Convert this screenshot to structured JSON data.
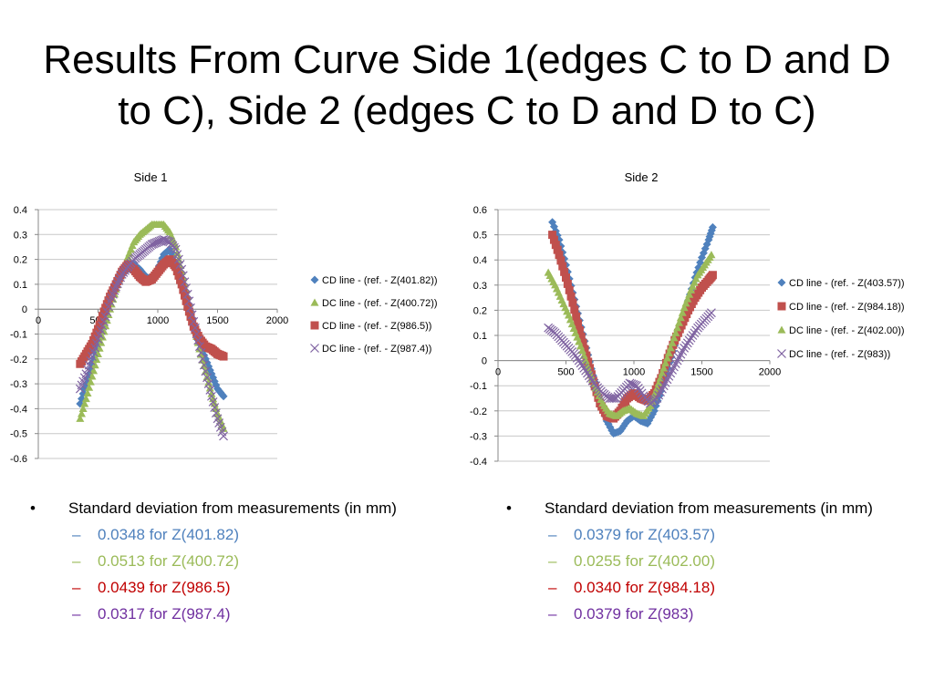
{
  "slide": {
    "title": "Results From Curve Side 1(edges C to D and D to C), Side 2 (edges C to D and D to C)"
  },
  "chart_data": [
    {
      "type": "scatter",
      "title": "Side 1",
      "xlim": [
        0,
        2000
      ],
      "ylim": [
        -0.6,
        0.4
      ],
      "xticks": [
        0,
        500,
        1000,
        1500,
        2000
      ],
      "yticks": [
        0.4,
        0.3,
        0.2,
        0.1,
        0,
        -0.1,
        -0.2,
        -0.3,
        -0.4,
        -0.5,
        -0.6
      ],
      "grid": true,
      "legend_position": "right",
      "series": [
        {
          "name": "CD line - (ref. - Z(401.82))",
          "marker": "diamond",
          "color": "#4F81BD",
          "x": [
            350,
            400,
            450,
            500,
            550,
            600,
            650,
            700,
            750,
            800,
            850,
            900,
            950,
            1000,
            1050,
            1100,
            1150,
            1200,
            1250,
            1300,
            1350,
            1400,
            1450,
            1500,
            1550
          ],
          "y": [
            -0.38,
            -0.3,
            -0.22,
            -0.13,
            -0.04,
            0.04,
            0.1,
            0.14,
            0.16,
            0.18,
            0.16,
            0.13,
            0.12,
            0.16,
            0.22,
            0.24,
            0.18,
            0.1,
            0.0,
            -0.08,
            -0.14,
            -0.2,
            -0.26,
            -0.32,
            -0.35
          ]
        },
        {
          "name": "DC line - (ref. - Z(400.72))",
          "marker": "triangle",
          "color": "#9BBB59",
          "x": [
            350,
            400,
            450,
            500,
            550,
            600,
            650,
            700,
            750,
            800,
            850,
            900,
            950,
            1000,
            1050,
            1100,
            1150,
            1200,
            1250,
            1300,
            1350,
            1400,
            1450,
            1500,
            1550
          ],
          "y": [
            -0.44,
            -0.36,
            -0.27,
            -0.18,
            -0.09,
            0.0,
            0.08,
            0.15,
            0.21,
            0.27,
            0.3,
            0.32,
            0.34,
            0.34,
            0.34,
            0.31,
            0.25,
            0.15,
            0.05,
            -0.06,
            -0.16,
            -0.25,
            -0.34,
            -0.42,
            -0.48
          ]
        },
        {
          "name": "CD line - (ref. - Z(986.5))",
          "marker": "square",
          "color": "#C0504D",
          "x": [
            350,
            400,
            450,
            500,
            550,
            600,
            650,
            700,
            750,
            800,
            850,
            900,
            950,
            1000,
            1050,
            1100,
            1150,
            1200,
            1250,
            1300,
            1350,
            1400,
            1450,
            1500,
            1550
          ],
          "y": [
            -0.22,
            -0.18,
            -0.14,
            -0.08,
            -0.01,
            0.05,
            0.1,
            0.15,
            0.18,
            0.16,
            0.13,
            0.11,
            0.12,
            0.15,
            0.18,
            0.2,
            0.17,
            0.1,
            0.01,
            -0.07,
            -0.12,
            -0.15,
            -0.16,
            -0.18,
            -0.19
          ]
        },
        {
          "name": "DC line - (ref. - Z(987.4))",
          "marker": "x",
          "color": "#8064A2",
          "x": [
            350,
            400,
            450,
            500,
            550,
            600,
            650,
            700,
            750,
            800,
            850,
            900,
            950,
            1000,
            1050,
            1100,
            1150,
            1200,
            1250,
            1300,
            1350,
            1400,
            1450,
            1500,
            1550
          ],
          "y": [
            -0.32,
            -0.26,
            -0.19,
            -0.12,
            -0.05,
            0.03,
            0.09,
            0.14,
            0.17,
            0.2,
            0.22,
            0.24,
            0.26,
            0.27,
            0.28,
            0.27,
            0.24,
            0.16,
            0.06,
            -0.05,
            -0.15,
            -0.25,
            -0.35,
            -0.44,
            -0.51
          ]
        }
      ]
    },
    {
      "type": "scatter",
      "title": "Side 2",
      "xlim": [
        0,
        2000
      ],
      "ylim": [
        -0.4,
        0.6
      ],
      "xticks": [
        0,
        500,
        1000,
        1500,
        2000
      ],
      "yticks": [
        0.6,
        0.5,
        0.4,
        0.3,
        0.2,
        0.1,
        0,
        -0.1,
        -0.2,
        -0.3,
        -0.4
      ],
      "grid": true,
      "legend_position": "right",
      "series": [
        {
          "name": "CD line - (ref. - Z(403.57))",
          "marker": "diamond",
          "color": "#4F81BD",
          "x": [
            400,
            450,
            500,
            550,
            600,
            650,
            700,
            750,
            800,
            850,
            900,
            950,
            1000,
            1050,
            1100,
            1150,
            1200,
            1250,
            1300,
            1350,
            1400,
            1450,
            1500,
            1550,
            1580
          ],
          "y": [
            0.55,
            0.48,
            0.38,
            0.27,
            0.16,
            0.05,
            -0.06,
            -0.16,
            -0.24,
            -0.29,
            -0.28,
            -0.24,
            -0.22,
            -0.24,
            -0.25,
            -0.2,
            -0.12,
            -0.03,
            0.06,
            0.15,
            0.24,
            0.33,
            0.41,
            0.48,
            0.53
          ]
        },
        {
          "name": "CD line - (ref. - Z(984.18))",
          "marker": "square",
          "color": "#C0504D",
          "x": [
            400,
            450,
            500,
            550,
            600,
            650,
            700,
            750,
            800,
            850,
            900,
            950,
            1000,
            1050,
            1100,
            1150,
            1200,
            1250,
            1300,
            1350,
            1400,
            1450,
            1500,
            1550,
            1580
          ],
          "y": [
            0.5,
            0.42,
            0.33,
            0.23,
            0.12,
            0.02,
            -0.08,
            -0.17,
            -0.22,
            -0.23,
            -0.2,
            -0.15,
            -0.13,
            -0.15,
            -0.16,
            -0.13,
            -0.07,
            0.01,
            0.08,
            0.14,
            0.2,
            0.25,
            0.29,
            0.32,
            0.34
          ]
        },
        {
          "name": "DC line - (ref. - Z(402.00))",
          "marker": "triangle",
          "color": "#9BBB59",
          "x": [
            370,
            420,
            470,
            520,
            570,
            620,
            670,
            720,
            770,
            820,
            870,
            920,
            970,
            1020,
            1070,
            1120,
            1170,
            1220,
            1270,
            1320,
            1370,
            1420,
            1470,
            1520,
            1570
          ],
          "y": [
            0.35,
            0.3,
            0.24,
            0.18,
            0.11,
            0.04,
            -0.04,
            -0.11,
            -0.17,
            -0.21,
            -0.22,
            -0.2,
            -0.19,
            -0.21,
            -0.22,
            -0.18,
            -0.11,
            -0.03,
            0.05,
            0.13,
            0.21,
            0.28,
            0.34,
            0.38,
            0.42
          ]
        },
        {
          "name": "DC line - (ref. - Z(983))",
          "marker": "x",
          "color": "#8064A2",
          "x": [
            370,
            420,
            470,
            520,
            570,
            620,
            670,
            720,
            770,
            820,
            870,
            920,
            970,
            1020,
            1070,
            1120,
            1170,
            1220,
            1270,
            1320,
            1370,
            1420,
            1470,
            1520,
            1570
          ],
          "y": [
            0.13,
            0.11,
            0.08,
            0.05,
            0.02,
            -0.02,
            -0.06,
            -0.1,
            -0.13,
            -0.15,
            -0.15,
            -0.12,
            -0.09,
            -0.1,
            -0.14,
            -0.17,
            -0.15,
            -0.1,
            -0.05,
            0.0,
            0.05,
            0.09,
            0.13,
            0.16,
            0.19
          ]
        }
      ]
    }
  ],
  "notes": {
    "left": {
      "heading": "Standard deviation from measurements (in mm)",
      "items": [
        {
          "text": "0.0348 for Z(401.82)",
          "color": "#4F81BD"
        },
        {
          "text": "0.0513 for Z(400.72)",
          "color": "#9BBB59"
        },
        {
          "text": "0.0439 for Z(986.5)",
          "color": "#C00000"
        },
        {
          "text": "0.0317 for Z(987.4)",
          "color": "#7030A0"
        }
      ]
    },
    "right": {
      "heading": "Standard deviation from measurements (in mm)",
      "items": [
        {
          "text": "0.0379 for Z(403.57)",
          "color": "#4F81BD"
        },
        {
          "text": "0.0255 for Z(402.00)",
          "color": "#9BBB59"
        },
        {
          "text": "0.0340 for Z(984.18)",
          "color": "#C00000"
        },
        {
          "text": " 0.0379 for Z(983)",
          "color": "#7030A0"
        }
      ]
    }
  },
  "bullet_glyphs": {
    "level1": "•",
    "level2": "–"
  }
}
